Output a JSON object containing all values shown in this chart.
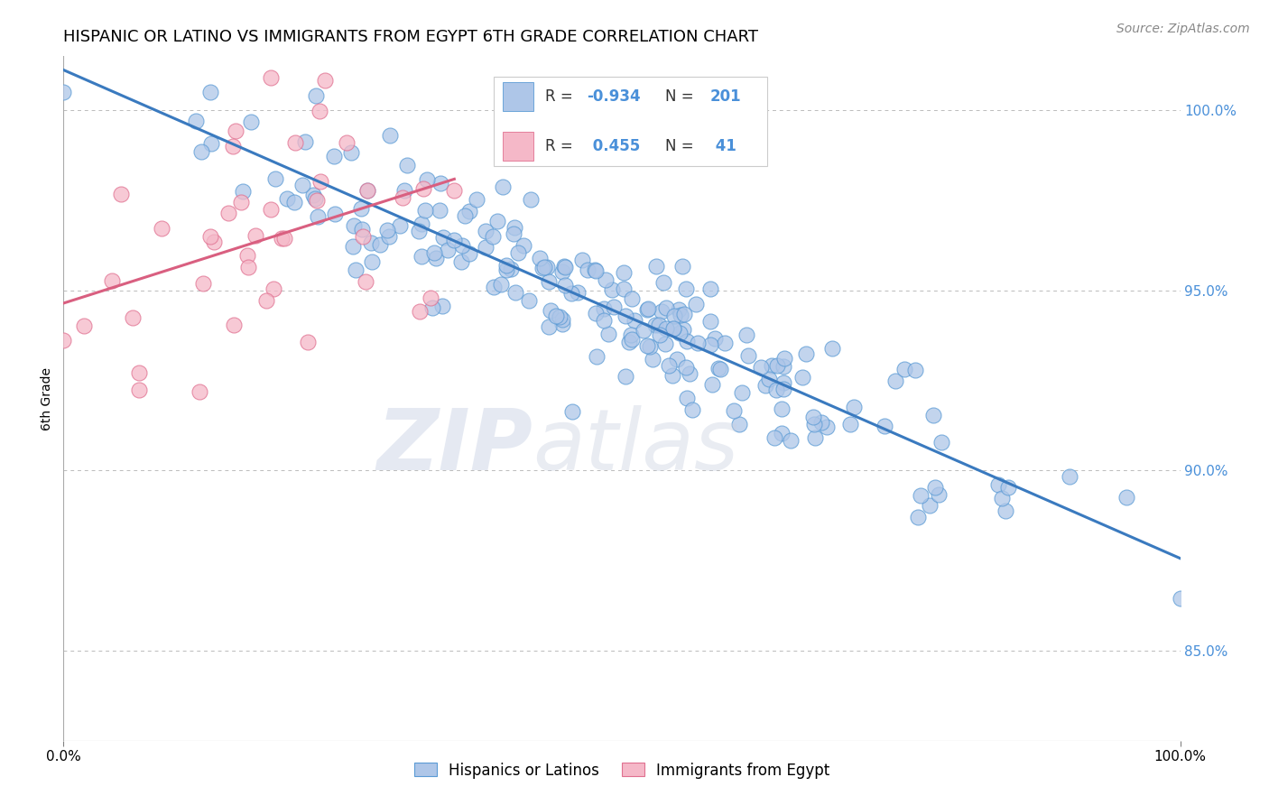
{
  "title": "HISPANIC OR LATINO VS IMMIGRANTS FROM EGYPT 6TH GRADE CORRELATION CHART",
  "source": "Source: ZipAtlas.com",
  "ylabel": "6th Grade",
  "legend_labels": [
    "Hispanics or Latinos",
    "Immigrants from Egypt"
  ],
  "blue_R": -0.934,
  "blue_N": 201,
  "pink_R": 0.455,
  "pink_N": 41,
  "blue_color": "#aec6e8",
  "blue_edge_color": "#5b9bd5",
  "pink_color": "#f5b8c8",
  "pink_edge_color": "#e07090",
  "blue_line_color": "#3a7abf",
  "pink_line_color": "#d95f80",
  "background_color": "#ffffff",
  "grid_color": "#bbbbbb",
  "right_ytick_color": "#4a90d9",
  "title_fontsize": 13,
  "source_fontsize": 10,
  "xlim": [
    0.0,
    1.0
  ],
  "ylim": [
    0.825,
    1.015
  ],
  "right_yticks": [
    0.85,
    0.9,
    0.95,
    1.0
  ],
  "right_ytick_labels": [
    "85.0%",
    "90.0%",
    "95.0%",
    "100.0%"
  ],
  "blue_seed": 42,
  "pink_seed": 7,
  "legend_R_color": "#4a90d9",
  "legend_text_color": "#333333"
}
